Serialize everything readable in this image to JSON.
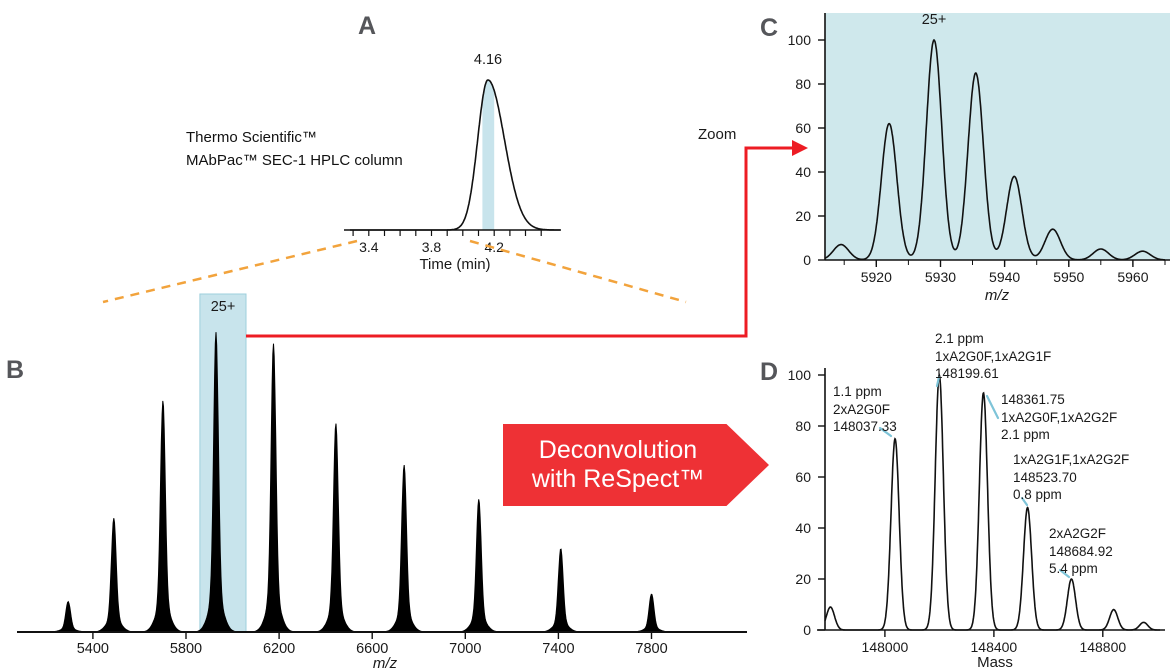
{
  "panels": {
    "a": "A",
    "b": "B",
    "c": "C",
    "d": "D"
  },
  "annotations": {
    "column_line1": "Thermo Scientific™",
    "column_line2": "MAbPac™ SEC-1 HPLC column",
    "retention_time": "4.16",
    "charge_state_b": "25+",
    "charge_state_c": "25+",
    "zoom_label": "Zoom",
    "deconvolution_line1": "Deconvolution",
    "deconvolution_line2": "with ReSpect™"
  },
  "panel_d_annotations": [
    {
      "lines": [
        "1.1 ppm",
        "2xA2G0F",
        "148037.33"
      ]
    },
    {
      "lines": [
        "2.1 ppm",
        "1xA2G0F,1xA2G1F",
        "148199.61"
      ]
    },
    {
      "lines": [
        "148361.75",
        "1xA2G0F,1xA2G2F",
        "2.1 ppm"
      ]
    },
    {
      "lines": [
        "1xA2G1F,1xA2G2F",
        "148523.70",
        "0.8 ppm"
      ]
    },
    {
      "lines": [
        "2xA2G2F",
        "148684.92",
        "5.4 ppm"
      ]
    }
  ],
  "colors": {
    "highlight_blue": "#c8e4ec",
    "panel_c_bg": "#cfe8ec",
    "arrow_red": "#ed1c24",
    "banner_red": "#ee3135",
    "dashed_orange": "#f2a33c",
    "callout_blue": "#7ec4d8",
    "panel_letter_gray": "#55565a"
  },
  "chart_data": [
    {
      "id": "panel-a-chromatogram",
      "panel": "A",
      "type": "line",
      "title": "",
      "xlabel": "Time (min)",
      "ylabel": "",
      "xlim": [
        3.28,
        4.62
      ],
      "axis_range": [
        3.3,
        4.5
      ],
      "x_tick_minor_step": 0.1,
      "x_ticks_labeled": [
        3.4,
        3.8,
        4.2
      ],
      "ylim": [
        0,
        110
      ],
      "grid": false,
      "sigma_left": 0.065,
      "sigma_right": 0.105,
      "highlight_band": [
        4.125,
        4.2
      ],
      "peaks": [
        {
          "x": 4.16,
          "h": 100,
          "label": "4.16"
        }
      ]
    },
    {
      "id": "panel-b-full-ms",
      "panel": "B",
      "type": "line",
      "title": "",
      "xlabel": "m/z",
      "ylabel": "",
      "xlim": [
        5130,
        8180
      ],
      "x_ticks": [
        5400,
        5800,
        6200,
        6600,
        7000,
        7400,
        7800
      ],
      "ylim": [
        0,
        100
      ],
      "grid": false,
      "sigma": 10,
      "skirt": 0.15,
      "highlight_band": [
        5860,
        6058
      ],
      "highlight_label": "25+",
      "peaks": [
        {
          "x": 5294,
          "h": 8
        },
        {
          "x": 5490,
          "h": 30
        },
        {
          "x": 5701,
          "h": 61
        },
        {
          "x": 5929,
          "h": 79,
          "label": "25+"
        },
        {
          "x": 6176,
          "h": 76
        },
        {
          "x": 6444,
          "h": 55
        },
        {
          "x": 6737,
          "h": 44
        },
        {
          "x": 7058,
          "h": 35
        },
        {
          "x": 7410,
          "h": 22
        },
        {
          "x": 7800,
          "h": 10
        }
      ]
    },
    {
      "id": "panel-c-zoom-ms",
      "panel": "C",
      "type": "line",
      "title": "",
      "xlabel": "m/z",
      "ylabel": "",
      "xlim": [
        5912,
        5965
      ],
      "x_ticks": [
        5920,
        5930,
        5940,
        5950,
        5960
      ],
      "x_tick_minor_step": 5,
      "y_ticks": [
        0,
        20,
        40,
        60,
        80,
        100
      ],
      "ylim": [
        0,
        105
      ],
      "grid": false,
      "sigma": 1.2,
      "peaks": [
        {
          "x": 5914.5,
          "h": 7
        },
        {
          "x": 5922,
          "h": 62
        },
        {
          "x": 5929,
          "h": 100,
          "label": "25+"
        },
        {
          "x": 5935.5,
          "h": 85
        },
        {
          "x": 5941.5,
          "h": 38
        },
        {
          "x": 5947.5,
          "h": 14
        },
        {
          "x": 5955,
          "h": 5
        },
        {
          "x": 5961.5,
          "h": 4
        }
      ]
    },
    {
      "id": "panel-d-deconvoluted",
      "panel": "D",
      "type": "line",
      "title": "",
      "xlabel": "Mass",
      "ylabel": "",
      "xlim": [
        147780,
        149010
      ],
      "x_ticks": [
        148000,
        148400,
        148800
      ],
      "y_ticks": [
        0,
        20,
        40,
        60,
        80,
        100
      ],
      "ylim": [
        0,
        105
      ],
      "grid": false,
      "sigma": 15,
      "peaks": [
        {
          "x": 147800,
          "h": 9
        },
        {
          "x": 148037.33,
          "h": 75,
          "label": "2xA2G0F",
          "ppm": "1.1 ppm"
        },
        {
          "x": 148199.61,
          "h": 100,
          "label": "1xA2G0F,1xA2G1F",
          "ppm": "2.1 ppm"
        },
        {
          "x": 148361.75,
          "h": 93,
          "label": "1xA2G0F,1xA2G2F",
          "ppm": "2.1 ppm"
        },
        {
          "x": 148523.7,
          "h": 48,
          "label": "1xA2G1F,1xA2G2F",
          "ppm": "0.8 ppm"
        },
        {
          "x": 148684.92,
          "h": 20,
          "label": "2xA2G2F",
          "ppm": "5.4 ppm"
        },
        {
          "x": 148840,
          "h": 8
        },
        {
          "x": 148950,
          "h": 3
        }
      ]
    }
  ]
}
